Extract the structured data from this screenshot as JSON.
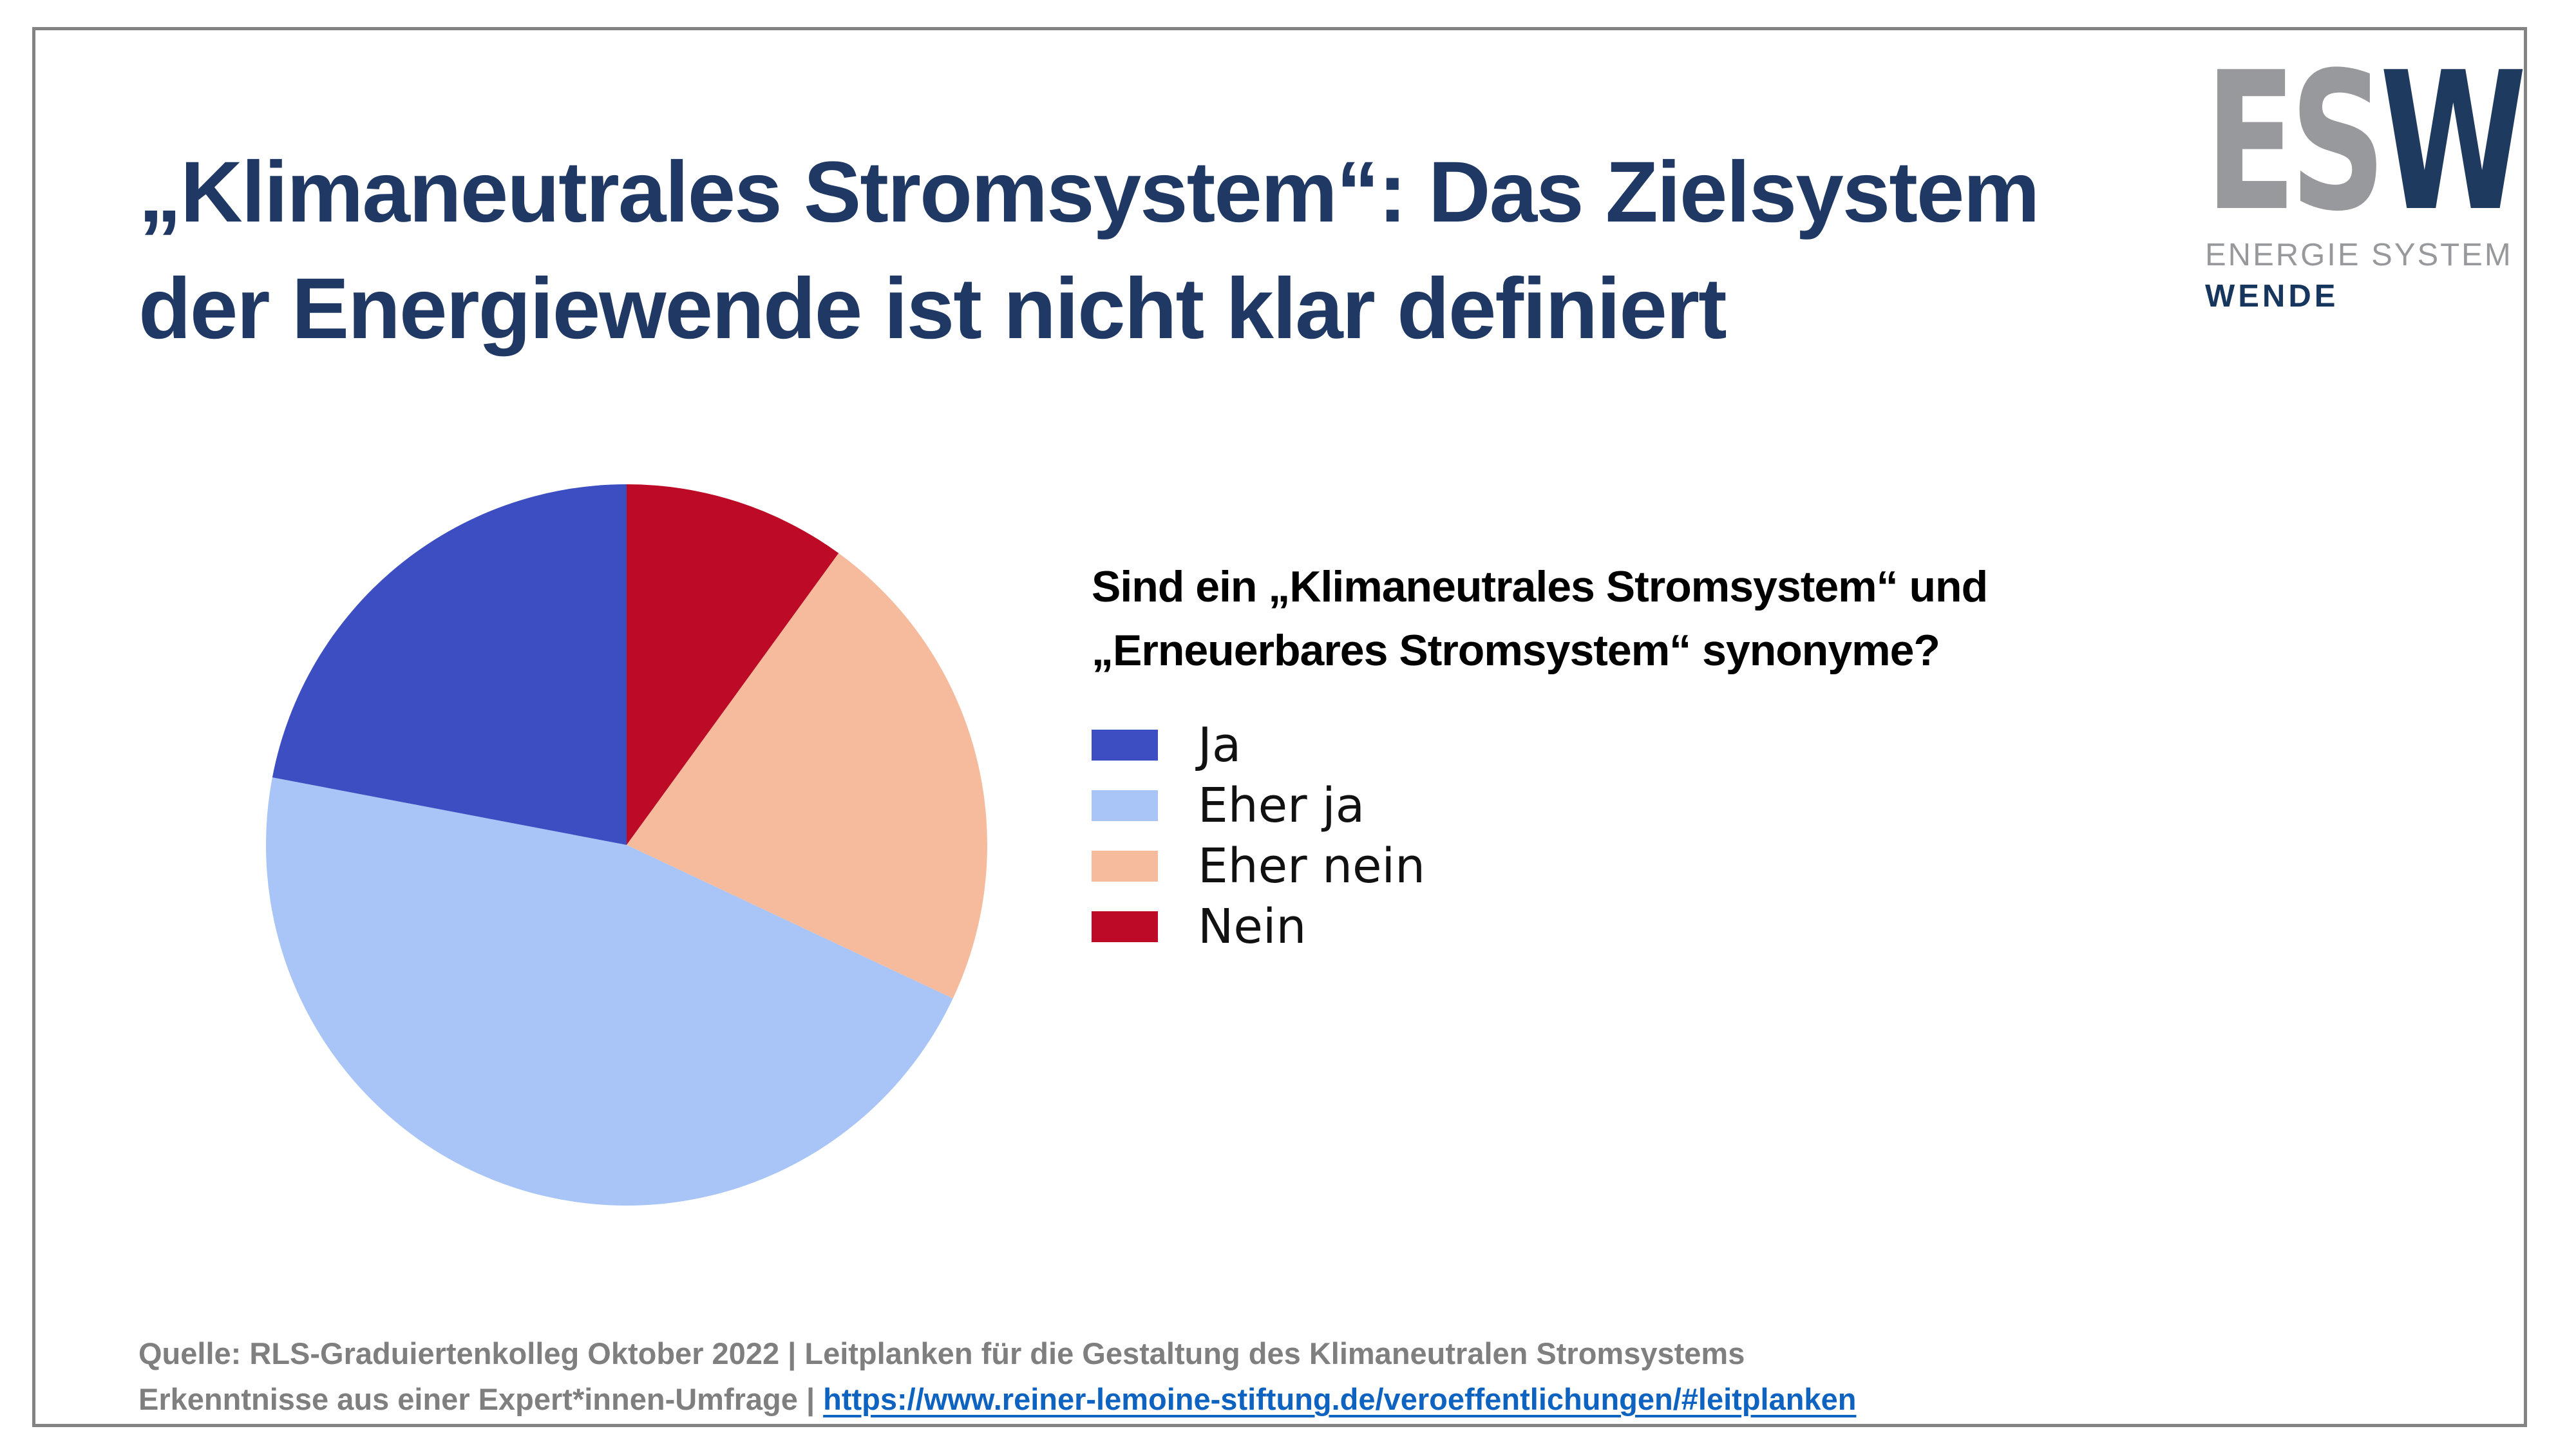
{
  "slide": {
    "background_color": "#ffffff",
    "frame_border_color": "#838383",
    "title_color": "#1f3864",
    "title_line1": "„Klimaneutrales Stromsystem“: Das Zielsystem",
    "title_line2": "der Energiewende ist nicht klar definiert"
  },
  "logo": {
    "acronym_gray": "ES",
    "acronym_navy": "W",
    "subtitle_line1": "ENERGIE SYSTEM",
    "subtitle_line2": "WENDE",
    "gray_color": "#97999c",
    "navy_color": "#1e3a5f"
  },
  "chart_data": {
    "type": "pie",
    "title": "Sind ein „Klimaneutrales Stromsystem“ und „Erneuerbares Stromsystem“ synonyme?",
    "title_lines": [
      "Sind ein „Klimaneutrales Stromsystem“ und",
      "„Erneuerbares Stromsystem“ synonyme?"
    ],
    "categories": [
      "Ja",
      "Eher ja",
      "Eher nein",
      "Nein"
    ],
    "values": [
      22,
      46,
      22,
      10
    ],
    "colors": [
      "#3c4ec1",
      "#a9c5f7",
      "#f5bb9c",
      "#bd0a26"
    ],
    "start_angle_deg": 90,
    "direction": "counterclockwise",
    "legend_position": "right",
    "data_labels": false
  },
  "footer": {
    "line1": "Quelle: RLS-Graduiertenkolleg Oktober 2022 | Leitplanken für die Gestaltung des Klimaneutralen Stromsystems",
    "line2_prefix": "Erkenntnisse aus einer Expert*innen-Umfrage | ",
    "link_text": "https://www.reiner-lemoine-stiftung.de/veroeffentlichungen/#leitplanken",
    "text_color": "#7f7f7f",
    "link_color": "#0f63c0"
  }
}
